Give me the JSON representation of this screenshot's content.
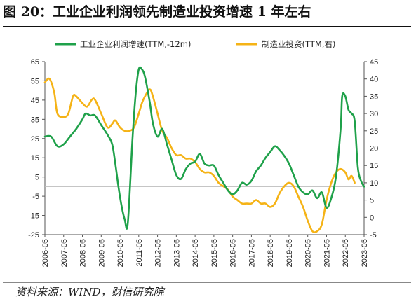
{
  "figure": {
    "title": "图 20：工业企业利润领先制造业投资增速 1 年左右",
    "source": "资料来源：WIND，财信研究院"
  },
  "colors": {
    "profit_series": "#1fa14a",
    "investment_series": "#f5b316",
    "axis": "#555555",
    "zero_line": "#bdbdbd"
  },
  "chart_data": {
    "type": "line",
    "x_tick_labels": [
      "2006-05",
      "2007-05",
      "2008-05",
      "2009-05",
      "2010-05",
      "2011-05",
      "2012-05",
      "2013-05",
      "2014-05",
      "2015-05",
      "2016-05",
      "2017-05",
      "2018-05",
      "2019-05",
      "2020-05",
      "2021-05",
      "2022-05",
      "2023-05"
    ],
    "left_axis": {
      "ylim": [
        -25,
        65
      ],
      "ticks": [
        65,
        55,
        45,
        35,
        25,
        15,
        5,
        -5,
        -15,
        -25
      ]
    },
    "right_axis": {
      "ylim": [
        -5,
        45
      ],
      "ticks": [
        45,
        40,
        35,
        30,
        25,
        20,
        15,
        10,
        5,
        0,
        -5
      ]
    },
    "legend_position": "top",
    "series": [
      {
        "name": "工业企业利润增速(TTM,-12m)",
        "axis": "left",
        "color": "#1fa14a",
        "points": [
          [
            "2006-05",
            26
          ],
          [
            "2006-09",
            26
          ],
          [
            "2007-01",
            21
          ],
          [
            "2007-05",
            22
          ],
          [
            "2007-09",
            26
          ],
          [
            "2008-01",
            30
          ],
          [
            "2008-05",
            35
          ],
          [
            "2008-07",
            38
          ],
          [
            "2008-10",
            37
          ],
          [
            "2009-01",
            37
          ],
          [
            "2009-05",
            32
          ],
          [
            "2009-09",
            27
          ],
          [
            "2009-12",
            22
          ],
          [
            "2010-02",
            12
          ],
          [
            "2010-04",
            0
          ],
          [
            "2010-06",
            -10
          ],
          [
            "2010-08",
            -17
          ],
          [
            "2010-10",
            -19
          ],
          [
            "2011-01",
            25
          ],
          [
            "2011-03",
            48
          ],
          [
            "2011-05",
            61
          ],
          [
            "2011-07",
            61
          ],
          [
            "2011-09",
            57
          ],
          [
            "2011-12",
            44
          ],
          [
            "2012-02",
            33
          ],
          [
            "2012-05",
            26
          ],
          [
            "2012-08",
            30
          ],
          [
            "2012-11",
            22
          ],
          [
            "2013-02",
            14
          ],
          [
            "2013-05",
            6
          ],
          [
            "2013-08",
            4
          ],
          [
            "2013-11",
            9
          ],
          [
            "2014-02",
            12
          ],
          [
            "2014-05",
            13
          ],
          [
            "2014-08",
            17
          ],
          [
            "2014-11",
            12
          ],
          [
            "2015-02",
            11
          ],
          [
            "2015-05",
            11
          ],
          [
            "2015-08",
            6
          ],
          [
            "2015-11",
            2
          ],
          [
            "2016-02",
            -2
          ],
          [
            "2016-05",
            -4
          ],
          [
            "2016-08",
            -2
          ],
          [
            "2016-11",
            2
          ],
          [
            "2017-02",
            1
          ],
          [
            "2017-05",
            3
          ],
          [
            "2017-08",
            8
          ],
          [
            "2017-11",
            11
          ],
          [
            "2018-02",
            15
          ],
          [
            "2018-05",
            18
          ],
          [
            "2018-08",
            21
          ],
          [
            "2018-11",
            19
          ],
          [
            "2019-02",
            16
          ],
          [
            "2019-05",
            12
          ],
          [
            "2019-08",
            6
          ],
          [
            "2019-11",
            0
          ],
          [
            "2020-02",
            -3
          ],
          [
            "2020-05",
            -4
          ],
          [
            "2020-08",
            -2
          ],
          [
            "2020-11",
            -6
          ],
          [
            "2021-02",
            -3
          ],
          [
            "2021-05",
            -11
          ],
          [
            "2021-08",
            -6
          ],
          [
            "2021-11",
            5
          ],
          [
            "2022-02",
            30
          ],
          [
            "2022-03",
            47
          ],
          [
            "2022-05",
            47
          ],
          [
            "2022-07",
            40
          ],
          [
            "2022-09",
            38
          ],
          [
            "2022-11",
            34
          ],
          [
            "2023-01",
            10
          ],
          [
            "2023-03",
            3
          ],
          [
            "2023-05",
            0
          ]
        ]
      },
      {
        "name": "制造业投资(TTM,右)",
        "axis": "right",
        "color": "#f5b316",
        "points": [
          [
            "2006-05",
            39
          ],
          [
            "2006-08",
            40
          ],
          [
            "2006-11",
            36
          ],
          [
            "2007-01",
            30
          ],
          [
            "2007-05",
            29
          ],
          [
            "2007-08",
            30
          ],
          [
            "2007-11",
            35
          ],
          [
            "2008-01",
            35
          ],
          [
            "2008-05",
            33
          ],
          [
            "2008-08",
            32
          ],
          [
            "2008-11",
            34
          ],
          [
            "2009-01",
            34
          ],
          [
            "2009-05",
            30
          ],
          [
            "2009-09",
            26
          ],
          [
            "2009-12",
            27
          ],
          [
            "2010-02",
            28
          ],
          [
            "2010-05",
            26
          ],
          [
            "2010-08",
            25
          ],
          [
            "2010-11",
            25
          ],
          [
            "2011-02",
            26
          ],
          [
            "2011-05",
            30
          ],
          [
            "2011-07",
            33
          ],
          [
            "2011-09",
            35
          ],
          [
            "2011-12",
            37
          ],
          [
            "2012-02",
            35
          ],
          [
            "2012-05",
            30
          ],
          [
            "2012-08",
            25
          ],
          [
            "2012-11",
            23
          ],
          [
            "2013-02",
            20
          ],
          [
            "2013-05",
            18
          ],
          [
            "2013-08",
            18
          ],
          [
            "2013-11",
            17
          ],
          [
            "2014-02",
            17
          ],
          [
            "2014-05",
            16
          ],
          [
            "2014-08",
            14
          ],
          [
            "2014-11",
            13
          ],
          [
            "2015-02",
            13
          ],
          [
            "2015-05",
            12
          ],
          [
            "2015-08",
            10
          ],
          [
            "2015-11",
            9
          ],
          [
            "2016-02",
            8
          ],
          [
            "2016-05",
            6
          ],
          [
            "2016-08",
            5
          ],
          [
            "2016-11",
            4
          ],
          [
            "2017-02",
            4
          ],
          [
            "2017-05",
            4
          ],
          [
            "2017-08",
            5
          ],
          [
            "2017-11",
            4
          ],
          [
            "2018-02",
            4
          ],
          [
            "2018-05",
            3
          ],
          [
            "2018-08",
            4
          ],
          [
            "2018-11",
            7
          ],
          [
            "2019-02",
            9
          ],
          [
            "2019-05",
            10
          ],
          [
            "2019-08",
            9
          ],
          [
            "2019-11",
            6
          ],
          [
            "2020-02",
            3
          ],
          [
            "2020-05",
            -1
          ],
          [
            "2020-08",
            -4
          ],
          [
            "2020-11",
            -4
          ],
          [
            "2021-02",
            -2
          ],
          [
            "2021-05",
            5
          ],
          [
            "2021-08",
            10
          ],
          [
            "2021-11",
            13
          ],
          [
            "2022-02",
            14
          ],
          [
            "2022-05",
            13
          ],
          [
            "2022-07",
            11
          ],
          [
            "2022-09",
            12
          ],
          [
            "2022-11",
            10
          ]
        ]
      }
    ]
  }
}
